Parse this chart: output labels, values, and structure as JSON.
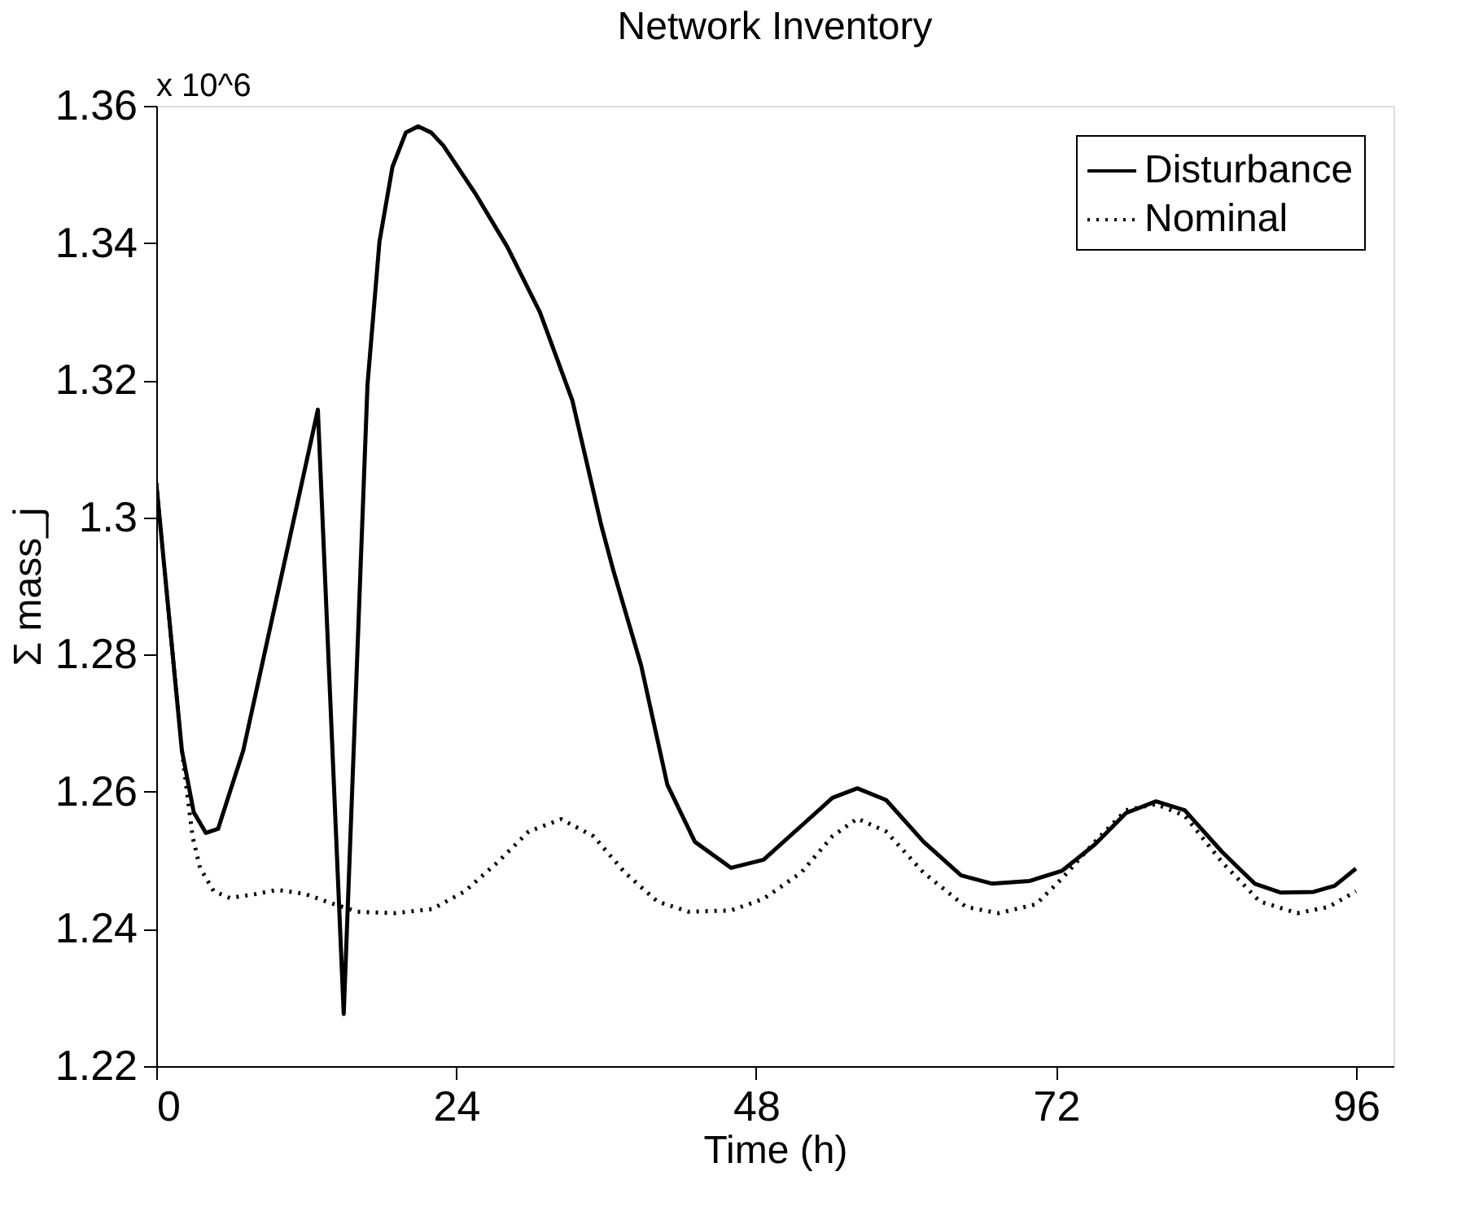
{
  "chart_data": {
    "type": "line",
    "title": "Network Inventory",
    "xlabel": "Time (h)",
    "ylabel": "Σ mass_j",
    "annotations": [
      "x 10^6"
    ],
    "xlim": [
      0,
      99
    ],
    "xticks": [
      0,
      24,
      48,
      72,
      96
    ],
    "ylim": [
      1.22,
      1.36
    ],
    "yticks": [
      1.22,
      1.24,
      1.26,
      1.28,
      1.3,
      1.32,
      1.34,
      1.36
    ],
    "grid": false,
    "legend": "top right",
    "marker": "none",
    "series": [
      {
        "name": "Disturbance",
        "color": "#000000",
        "line_style": "solid",
        "x": [
          0,
          2.05,
          3.0,
          3.97,
          4.95,
          5.9,
          6.96,
          12.93,
          15.0,
          16.9,
          17.86,
          18.9,
          19.97,
          20.95,
          22.0,
          22.97,
          25.5,
          28.1,
          30.7,
          33.3,
          35.6,
          36.6,
          38.8,
          40.9,
          43.1,
          46.0,
          48.6,
          51.6,
          54.1,
          56.1,
          58.4,
          61.4,
          64.4,
          66.9,
          69.9,
          72.5,
          75.1,
          77.6,
          80.0,
          82.3,
          85.3,
          87.9,
          90.0,
          92.6,
          94.3,
          96.0
        ],
        "values": [
          1.305,
          1.266,
          1.257,
          1.254,
          1.2546,
          1.26,
          1.266,
          1.3157,
          1.2276,
          1.3193,
          1.3402,
          1.3511,
          1.3561,
          1.357,
          1.3561,
          1.3542,
          1.3473,
          1.3394,
          1.3299,
          1.317,
          1.2989,
          1.2921,
          1.2784,
          1.261,
          1.2527,
          1.2489,
          1.2501,
          1.255,
          1.2591,
          1.2605,
          1.2588,
          1.2527,
          1.2478,
          1.2466,
          1.247,
          1.2485,
          1.2523,
          1.2569,
          1.2586,
          1.2573,
          1.2512,
          1.2466,
          1.2453,
          1.2454,
          1.2463,
          1.2488
        ]
      },
      {
        "name": "Nominal",
        "color": "#000000",
        "line_style": "dotted",
        "x": [
          0,
          2.05,
          2.9,
          3.5,
          4.6,
          5.9,
          8.0,
          9.7,
          11.9,
          13.6,
          16.1,
          19.1,
          22.1,
          24.7,
          27.3,
          29.8,
          32.4,
          35.0,
          37.5,
          40.1,
          42.6,
          46.0,
          48.6,
          51.6,
          54.1,
          56.1,
          58.4,
          61.4,
          64.8,
          67.4,
          70.4,
          72.5,
          75.1,
          77.6,
          80.0,
          82.3,
          85.3,
          88.3,
          91.3,
          93.8,
          96.0
        ],
        "values": [
          1.305,
          1.266,
          1.2535,
          1.2489,
          1.2455,
          1.2445,
          1.2451,
          1.2457,
          1.2451,
          1.244,
          1.2425,
          1.2423,
          1.2429,
          1.2455,
          1.2497,
          1.2542,
          1.256,
          1.2535,
          1.2482,
          1.244,
          1.2425,
          1.2427,
          1.2444,
          1.2482,
          1.2535,
          1.2561,
          1.2542,
          1.2482,
          1.2432,
          1.2423,
          1.2436,
          1.2474,
          1.2527,
          1.2573,
          1.2582,
          1.2565,
          1.2497,
          1.244,
          1.2423,
          1.2432,
          1.2455
        ]
      }
    ]
  }
}
